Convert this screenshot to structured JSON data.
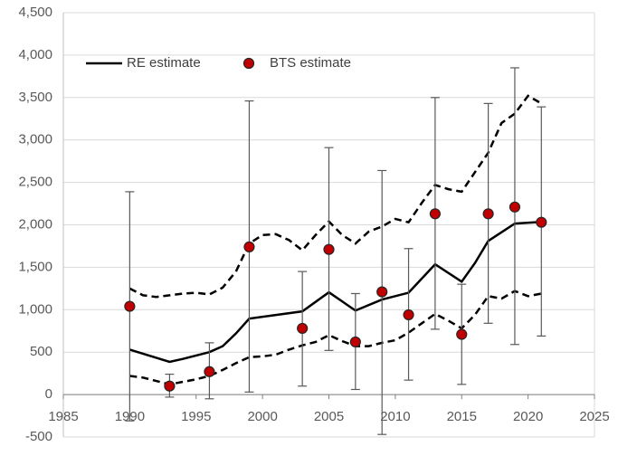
{
  "chart_data": {
    "type": "line",
    "xlim": [
      1985,
      2025
    ],
    "xticks": [
      1985,
      1990,
      1995,
      2000,
      2005,
      2010,
      2015,
      2020,
      2025
    ],
    "ylim": [
      -500,
      4500
    ],
    "yticks": [
      {
        "value": -500,
        "label": "-500"
      },
      0,
      500,
      {
        "value": 1000,
        "label": "1,000"
      },
      {
        "value": 1500,
        "label": "1,500"
      },
      {
        "value": 2000,
        "label": "2,000"
      },
      {
        "value": 2500,
        "label": "2,500"
      },
      {
        "value": 3000,
        "label": "3,000"
      },
      {
        "value": 3500,
        "label": "3,500"
      },
      {
        "value": 4000,
        "label": "4,000"
      },
      {
        "value": 4500,
        "label": "4,500"
      }
    ],
    "grid": true,
    "legend": "top-left",
    "series": [
      {
        "name": "RE estimate",
        "color": "#000000",
        "style": "solid",
        "x": [
          1990,
          1993,
          1994,
          1996,
          1997,
          1998,
          1999,
          2003,
          2005,
          2007,
          2009,
          2011,
          2013,
          2015,
          2016,
          2017,
          2019,
          2021
        ],
        "values": [
          530,
          385,
          420,
          500,
          570,
          720,
          895,
          980,
          1205,
          990,
          1120,
          1200,
          1535,
          1330,
          1550,
          1810,
          2015,
          2035
        ]
      },
      {
        "color": "#000000",
        "style": "dashed",
        "x": [
          1990,
          1991,
          1992,
          1993,
          1994,
          1995,
          1996,
          1997,
          1998,
          1999,
          2000,
          2001,
          2002,
          2003,
          2004,
          2005,
          2006,
          2007,
          2008,
          2009,
          2010,
          2011,
          2012,
          2013,
          2014,
          2015,
          2016,
          2017,
          2018,
          2019,
          2020,
          2021
        ],
        "values": [
          1250,
          1170,
          1150,
          1170,
          1190,
          1200,
          1180,
          1260,
          1450,
          1780,
          1880,
          1890,
          1820,
          1700,
          1880,
          2040,
          1880,
          1780,
          1920,
          1980,
          2070,
          2030,
          2260,
          2470,
          2420,
          2390,
          2620,
          2850,
          3200,
          3310,
          3520,
          3430
        ]
      },
      {
        "color": "#000000",
        "style": "dashed",
        "x": [
          1990,
          1991,
          1992,
          1993,
          1994,
          1995,
          1996,
          1997,
          1998,
          1999,
          2000,
          2001,
          2002,
          2003,
          2004,
          2005,
          2006,
          2007,
          2008,
          2009,
          2010,
          2011,
          2012,
          2013,
          2014,
          2015,
          2016,
          2017,
          2018,
          2019,
          2020,
          2021
        ],
        "values": [
          220,
          200,
          160,
          120,
          150,
          180,
          220,
          290,
          370,
          440,
          450,
          470,
          530,
          580,
          620,
          700,
          630,
          570,
          570,
          610,
          640,
          730,
          840,
          950,
          870,
          780,
          940,
          1160,
          1130,
          1220,
          1160,
          1190
        ]
      },
      {
        "name": "BTS estimate",
        "type": "scatter",
        "color": "#c00000",
        "x": [
          1990,
          1993,
          1996,
          1999,
          2003,
          2005,
          2007,
          2009,
          2011,
          2013,
          2015,
          2017,
          2019,
          2021
        ],
        "values": [
          1040,
          100,
          270,
          1740,
          780,
          1710,
          620,
          1210,
          940,
          2130,
          710,
          2130,
          2210,
          2030
        ],
        "lower": [
          -310,
          -30,
          -50,
          30,
          100,
          520,
          60,
          -470,
          170,
          770,
          120,
          840,
          590,
          690
        ],
        "upper": [
          2390,
          240,
          610,
          3460,
          1450,
          2910,
          1190,
          2640,
          1720,
          3500,
          1300,
          3430,
          3850,
          3390
        ]
      }
    ]
  }
}
